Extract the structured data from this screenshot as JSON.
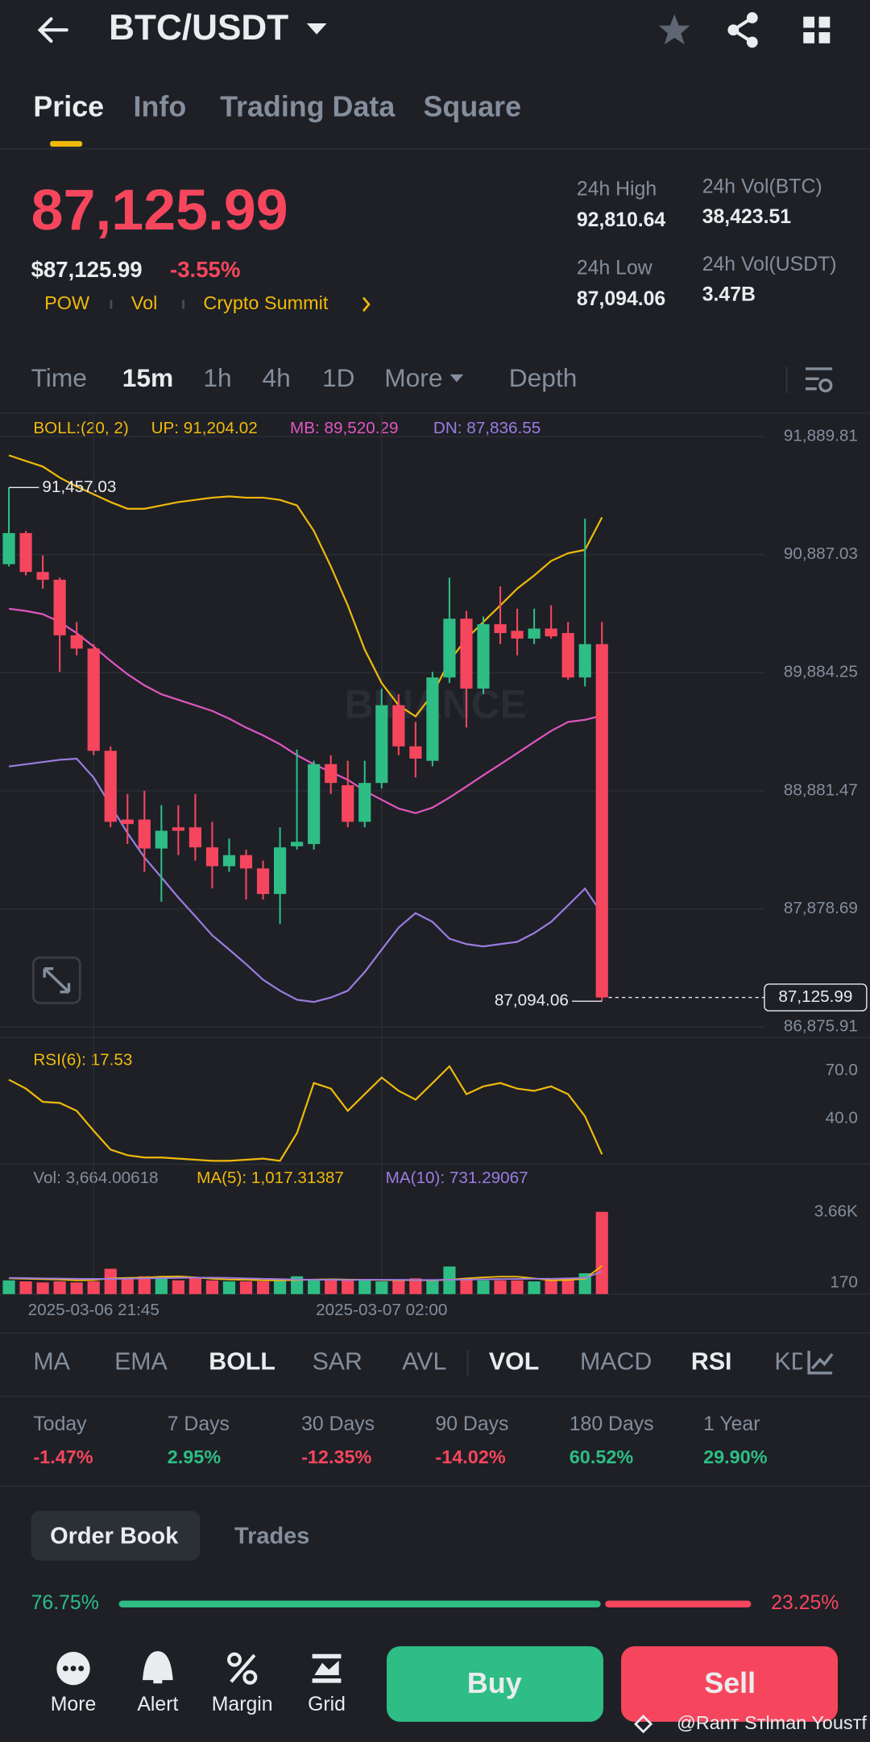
{
  "header": {
    "pair": "BTC/USDT"
  },
  "tabs": [
    "Price",
    "Info",
    "Trading Data",
    "Square"
  ],
  "ticker": {
    "price": "87,125.99",
    "price_usd": "$87,125.99",
    "change": "-3.55%",
    "tags": [
      "POW",
      "Vol",
      "Crypto Summit"
    ],
    "stats": [
      {
        "label": "24h High",
        "value": "92,810.64"
      },
      {
        "label": "24h Vol(BTC)",
        "value": "38,423.51"
      },
      {
        "label": "24h Low",
        "value": "87,094.06"
      },
      {
        "label": "24h Vol(USDT)",
        "value": "3.47B"
      }
    ]
  },
  "intervals": [
    "Time",
    "15m",
    "1h",
    "4h",
    "1D",
    "More",
    "Depth"
  ],
  "price_chart": {
    "type": "candlestick",
    "legend": [
      "BOLL:(20, 2)",
      "UP: 91,204.02",
      "MB: 89,520.29",
      "DN: 87,836.55"
    ],
    "watermark": "BINANCE",
    "up_color": "#2ebd85",
    "down_color": "#f6465d",
    "categories": [
      null,
      null,
      null,
      null,
      null,
      "2025-03-06 21:45",
      null,
      null,
      null,
      null,
      null,
      null,
      null,
      null,
      null,
      null,
      null,
      null,
      null,
      null,
      null,
      null,
      "2025-03-07 02:00",
      null,
      null,
      null,
      null,
      null,
      null,
      null,
      null,
      null,
      null,
      null,
      null,
      null
    ],
    "open": [
      90806,
      91070,
      90740,
      90674,
      90202,
      90089,
      89221,
      88637,
      88637,
      88391,
      88571,
      88571,
      88401,
      88241,
      88335,
      88222,
      88005,
      88410,
      88429,
      89108,
      88929,
      88618,
      88948,
      89608,
      89259,
      89136,
      89844,
      90343,
      89749,
      90296,
      90240,
      90174,
      90259,
      90221,
      89844,
      90127
    ],
    "high": [
      91457.03,
      91088,
      90881,
      90692,
      90315,
      90127,
      89259,
      88854,
      88882,
      88759,
      88759,
      88854,
      88618,
      88476,
      88382,
      88288,
      88571,
      89231,
      89136,
      89184,
      89136,
      89136,
      89749,
      89702,
      89466,
      89891,
      90692,
      90409,
      90362,
      90617,
      90428,
      90428,
      90457,
      90315,
      91192,
      90315
    ],
    "low": [
      90787,
      90711,
      90598,
      89891,
      90032,
      89184,
      88571,
      88429,
      88193,
      87939,
      88335,
      88288,
      88052,
      88193,
      87958,
      87958,
      87750,
      88382,
      88382,
      88854,
      88571,
      88571,
      88901,
      89184,
      88995,
      89089,
      89797,
      89419,
      89702,
      90127,
      90032,
      90127,
      90174,
      89825,
      89768,
      87094.06
    ],
    "close": [
      91070,
      90740,
      90674,
      90202,
      90089,
      89221,
      88618,
      88599,
      88391,
      88542,
      88542,
      88401,
      88241,
      88335,
      88222,
      88005,
      88401,
      88448,
      89108,
      88948,
      88618,
      88948,
      89608,
      89259,
      89155,
      89844,
      90343,
      89749,
      90296,
      90221,
      90174,
      90259,
      90193,
      89844,
      90127,
      87125.99
    ],
    "bands": [
      {
        "color": "#f0b90b",
        "values": [
          91730,
          91682,
          91635,
          91541,
          91465,
          91399,
          91333,
          91277,
          91277,
          91305,
          91333,
          91352,
          91371,
          91381,
          91371,
          91371,
          91352,
          91305,
          91088,
          90786,
          90456,
          90079,
          89796,
          89607,
          89513,
          89701,
          89984,
          90173,
          90315,
          90456,
          90598,
          90711,
          90833,
          90899,
          90928,
          91204.02
        ]
      },
      {
        "color": "#e056c0",
        "values": [
          90428,
          90409,
          90381,
          90315,
          90220,
          90107,
          89984,
          89871,
          89777,
          89701,
          89654,
          89607,
          89560,
          89494,
          89418,
          89352,
          89277,
          89183,
          89107,
          89041,
          88975,
          88881,
          88805,
          88730,
          88692,
          88739,
          88824,
          88918,
          89013,
          89107,
          89201,
          89296,
          89390,
          89466,
          89484,
          89520.29
        ]
      },
      {
        "color": "#9c7ce0",
        "values": [
          89088,
          89107,
          89126,
          89145,
          89154,
          88994,
          88758,
          88522,
          88315,
          88145,
          87975,
          87815,
          87654,
          87532,
          87409,
          87277,
          87183,
          87107,
          87088,
          87126,
          87183,
          87343,
          87532,
          87720,
          87843,
          87768,
          87626,
          87579,
          87560,
          87579,
          87598,
          87673,
          87768,
          87909,
          88051,
          87836.55
        ]
      }
    ],
    "ylim": [
      86786,
      92088
    ],
    "yticks": [
      {
        "value": 91889.81,
        "label": "91,889.81"
      },
      {
        "value": 90887.03,
        "label": "90,887.03"
      },
      {
        "value": 89884.25,
        "label": "89,884.25"
      },
      {
        "value": 88881.47,
        "label": "88,881.47"
      },
      {
        "value": 87878.69,
        "label": "87,878.69"
      },
      {
        "value": 86875.91,
        "label": "86,875.91"
      }
    ],
    "high_label": "91,457.03",
    "low_label": "87,094.06",
    "last_label": "87,125.99"
  },
  "rsi_chart": {
    "type": "line",
    "legend": "RSI(6): 17.53",
    "color": "#f0b90b",
    "values": [
      64.4,
      58.8,
      50.5,
      49.8,
      44.9,
      32.3,
      20.5,
      17.0,
      15.6,
      15.6,
      14.9,
      14.2,
      13.5,
      13.5,
      14.2,
      14.9,
      13.5,
      30.9,
      62.3,
      58.8,
      44.9,
      55.3,
      65.8,
      57.4,
      51.9,
      62.3,
      72.8,
      55.3,
      60.2,
      62.3,
      58.8,
      57.4,
      60.2,
      55.3,
      41.4,
      17.53
    ],
    "ylim": [
      11.4,
      86.7
    ],
    "yticks": [
      {
        "value": 70,
        "label": "70.0"
      },
      {
        "value": 40,
        "label": "40.0"
      }
    ]
  },
  "volume_chart": {
    "type": "bar",
    "legend": [
      "Vol: 3,664.00618",
      "MA(5): 1,017.31387",
      "MA(10): 731.29067"
    ],
    "values": [
      300,
      250,
      200,
      250,
      200,
      250,
      870,
      350,
      500,
      450,
      300,
      400,
      300,
      250,
      250,
      250,
      350,
      500,
      350,
      300,
      300,
      300,
      250,
      300,
      400,
      350,
      980,
      350,
      300,
      300,
      300,
      250,
      300,
      400,
      650,
      3664.00618
    ],
    "ma": [
      {
        "color": "#f0b90b",
        "values": [
          400,
          380,
          360,
          340,
          300,
          320,
          400,
          420,
          440,
          480,
          500,
          450,
          380,
          340,
          330,
          300,
          300,
          320,
          340,
          350,
          340,
          330,
          320,
          310,
          310,
          300,
          330,
          400,
          450,
          480,
          480,
          400,
          300,
          320,
          380,
          1017.31
        ]
      },
      {
        "color": "#9c7ce0",
        "values": [
          420,
          410,
          400,
          390,
          380,
          370,
          370,
          380,
          400,
          410,
          420,
          430,
          430,
          420,
          400,
          380,
          360,
          340,
          330,
          330,
          320,
          330,
          330,
          330,
          320,
          320,
          330,
          340,
          350,
          360,
          370,
          380,
          380,
          400,
          420,
          731.29
        ]
      }
    ],
    "ylim": [
      -375,
      4533
    ],
    "yticks": [
      {
        "value": 3660,
        "label": "3.66K"
      },
      170
    ]
  },
  "indicators": [
    "MA",
    "EMA",
    "BOLL",
    "SAR",
    "AVL",
    "VOL",
    "MACD",
    "RSI",
    "KDJ"
  ],
  "performance": [
    {
      "period": "Today",
      "change": "-1.47%"
    },
    {
      "period": "7 Days",
      "change": "2.95%"
    },
    {
      "period": "30 Days",
      "change": "-12.35%"
    },
    {
      "period": "90 Days",
      "change": "-14.02%"
    },
    {
      "period": "180 Days",
      "change": "60.52%"
    },
    {
      "period": "1 Year",
      "change": "29.90%"
    }
  ],
  "order_book": {
    "tabs": [
      "Order Book",
      "Trades"
    ],
    "values": [
      76.75,
      23.25
    ],
    "value_labels": [
      "76.75%",
      "23.25%"
    ],
    "colors": [
      "#2ebd85",
      "#f6465d"
    ]
  },
  "nav": [
    "More",
    "Alert",
    "Margin",
    "Grid"
  ],
  "actions": [
    "Buy",
    "Sell"
  ],
  "watermark": "@Ranт Sтlman Yousтf"
}
